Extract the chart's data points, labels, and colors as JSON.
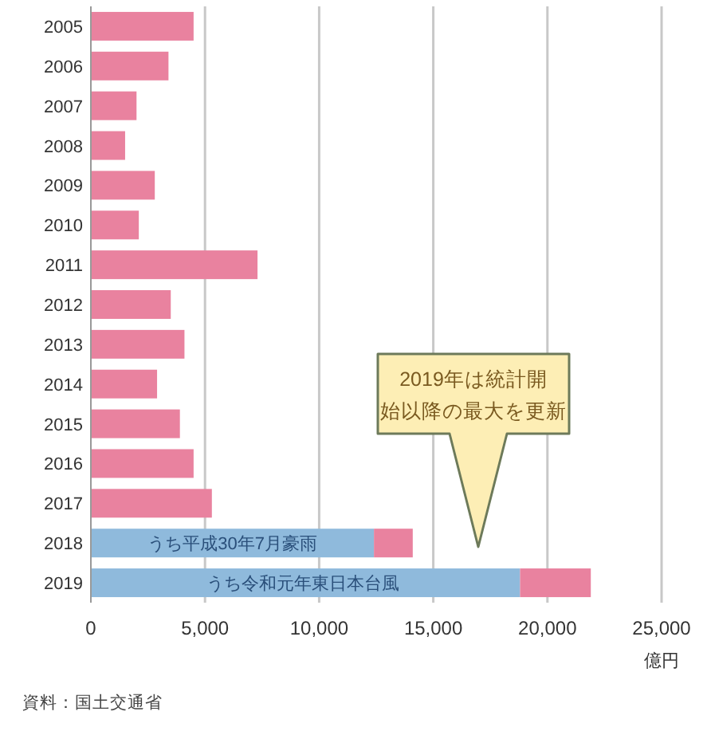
{
  "chart_data": {
    "type": "bar",
    "orientation": "horizontal",
    "stacked": true,
    "grid": "x",
    "xlabel": "億円",
    "categories": [
      "2005",
      "2006",
      "2007",
      "2008",
      "2009",
      "2010",
      "2011",
      "2012",
      "2013",
      "2014",
      "2015",
      "2016",
      "2017",
      "2018",
      "2019"
    ],
    "series": [
      {
        "color": "#8fbadc",
        "values": [
          null,
          null,
          null,
          null,
          null,
          null,
          null,
          null,
          null,
          null,
          null,
          null,
          null,
          12400,
          18800
        ]
      },
      {
        "color": "#e9829f",
        "values": [
          4500,
          3400,
          2000,
          1500,
          2800,
          2100,
          7300,
          3500,
          4100,
          2900,
          3900,
          4500,
          5300,
          1700,
          3100
        ]
      }
    ],
    "xlim": [
      0,
      25000
    ],
    "xticks": [
      0,
      {
        "value": 5000,
        "label": "5,000"
      },
      {
        "value": 10000,
        "label": "10,000"
      },
      {
        "value": 15000,
        "label": "15,000"
      },
      {
        "value": 20000,
        "label": "20,000"
      },
      {
        "value": 25000,
        "label": "25,000"
      }
    ],
    "annotations": [
      {
        "text": "うち平成30年7月豪雨",
        "x": 6200,
        "y": "2018"
      },
      {
        "text": "うち令和元年東日本台風",
        "x": 9300,
        "y": "2019"
      },
      "2019年は統計開始以降の最大を更新",
      "資料：国土交通省"
    ]
  }
}
